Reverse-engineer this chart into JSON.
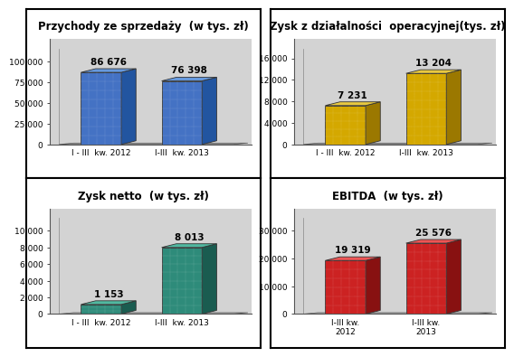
{
  "panels": [
    {
      "title": "Przychody ze sprzedaży  (w tys. zł)",
      "categories": [
        "I - III  kw. 2012",
        "I-III  kw. 2013"
      ],
      "values": [
        86676,
        76398
      ],
      "labels": [
        "86 676",
        "76 398"
      ],
      "bar_color": "#4472C4",
      "bar_color_side": "#2255A0",
      "bar_color_top": "#6699DD",
      "ylim": [
        0,
        110000
      ],
      "yticks": [
        0,
        25000,
        50000,
        75000,
        100000
      ],
      "ytick_labels": [
        "0",
        "25 000",
        "50 000",
        "75 000",
        "100 000"
      ]
    },
    {
      "title": "Zysk z działalności  operacyjnej(tys. zł)",
      "categories": [
        "I - III  kw. 2012",
        "I-III  kw. 2013"
      ],
      "values": [
        7231,
        13204
      ],
      "labels": [
        "7 231",
        "13 204"
      ],
      "bar_color": "#D4A800",
      "bar_color_side": "#9B7800",
      "bar_color_top": "#E8C840",
      "ylim": [
        0,
        17000
      ],
      "yticks": [
        0,
        4000,
        8000,
        12000,
        16000
      ],
      "ytick_labels": [
        "0",
        "4 000",
        "8 000",
        "12 000",
        "16 000"
      ]
    },
    {
      "title": "Zysk netto  (w tys. zł)",
      "categories": [
        "I - III  kw. 2012",
        "I-III  kw. 2013"
      ],
      "values": [
        1153,
        8013
      ],
      "labels": [
        "1 153",
        "8 013"
      ],
      "bar_color": "#2E8B7A",
      "bar_color_side": "#1A5C50",
      "bar_color_top": "#50B8A0",
      "ylim": [
        0,
        11000
      ],
      "yticks": [
        0,
        2000,
        4000,
        6000,
        8000,
        10000
      ],
      "ytick_labels": [
        "0",
        "2 000",
        "4 000",
        "6 000",
        "8 000",
        "10 000"
      ]
    },
    {
      "title": "EBITDA  (w tys. zł)",
      "categories": [
        "I-III kw.\n2012",
        "I-III kw.\n2013"
      ],
      "values": [
        19319,
        25576
      ],
      "labels": [
        "19 319",
        "25 576"
      ],
      "bar_color": "#CC2222",
      "bar_color_side": "#881111",
      "bar_color_top": "#EE5555",
      "ylim": [
        0,
        33000
      ],
      "yticks": [
        0,
        10000,
        20000,
        30000
      ],
      "ytick_labels": [
        "0",
        "10 000",
        "20 000",
        "30 000"
      ]
    }
  ],
  "outer_bg": "#ffffff",
  "title_fontsize": 8.5,
  "tick_fontsize": 6.5,
  "label_fontsize": 7.5
}
